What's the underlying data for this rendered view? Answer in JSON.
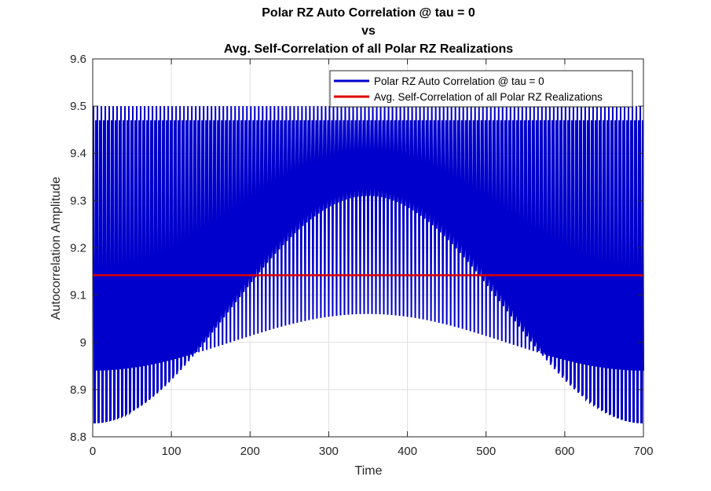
{
  "chart_data": {
    "type": "line",
    "title": [
      "Polar RZ Auto Correlation @ tau = 0",
      "vs",
      "Avg. Self-Correlation of all Polar RZ Realizations"
    ],
    "xlabel": "Time",
    "ylabel": "Autocorrelation Amplitude",
    "xlim": [
      0,
      700
    ],
    "ylim": [
      8.8,
      9.6
    ],
    "xticks": [
      0,
      100,
      200,
      300,
      400,
      500,
      600,
      700
    ],
    "xtick_labels": [
      "0",
      "100",
      "200",
      "300",
      "400",
      "500",
      "600",
      "700"
    ],
    "yticks": [
      8.8,
      8.9,
      9.0,
      9.1,
      9.2,
      9.3,
      9.4,
      9.5,
      9.6
    ],
    "ytick_labels": [
      "8.8",
      "8.9",
      "9",
      "9.1",
      "9.2",
      "9.3",
      "9.4",
      "9.5",
      "9.6"
    ],
    "grid": true,
    "legend_position": "top-right",
    "series": [
      {
        "name": "Polar RZ Auto Correlation @ tau = 0",
        "color": "#0000cc",
        "kind": "oscillation",
        "x_start": 1,
        "x_end": 700,
        "period": 5,
        "levels": [
          {
            "min": 9.5,
            "max": 9.5
          },
          {
            "min": 8.83,
            "max": 9.31
          },
          {
            "min": 8.83,
            "max": 9.35
          },
          {
            "min": 9.47,
            "max": 9.47
          },
          {
            "min": 8.94,
            "max": 9.06
          }
        ]
      },
      {
        "name": "Avg. Self-Correlation of all Polar RZ Realizations",
        "color": "#dd0000",
        "kind": "constant",
        "value": 9.142
      }
    ]
  }
}
